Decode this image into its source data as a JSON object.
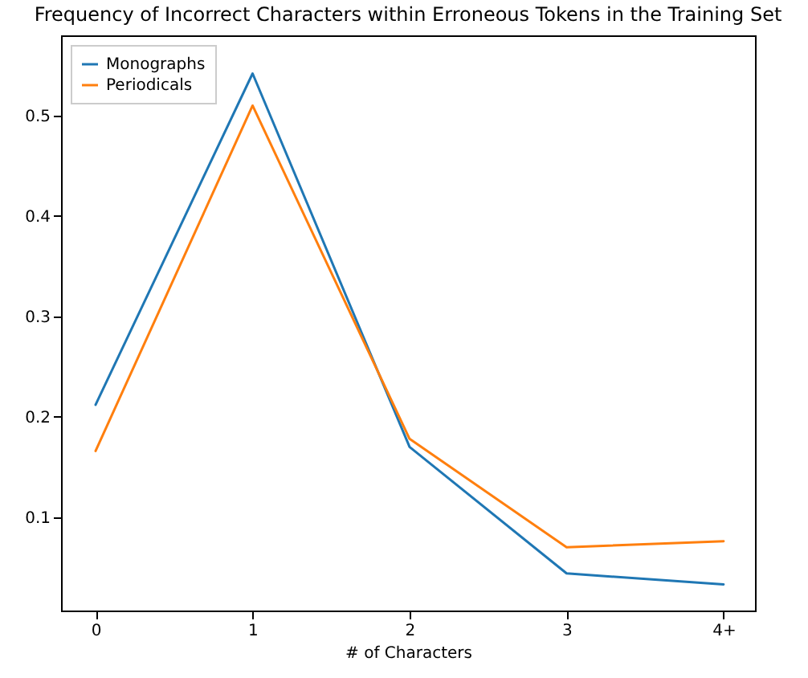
{
  "chart_data": {
    "type": "line",
    "title": "Frequency of Incorrect Characters within Erroneous Tokens in the Training Set",
    "xlabel": "# of Characters",
    "categories": [
      "0",
      "1",
      "2",
      "3",
      "4+"
    ],
    "series": [
      {
        "name": "Monographs",
        "color": "#1f77b4",
        "values": [
          0.212,
          0.542,
          0.17,
          0.044,
          0.033
        ]
      },
      {
        "name": "Periodicals",
        "color": "#ff7f0e",
        "values": [
          0.166,
          0.51,
          0.178,
          0.07,
          0.076
        ]
      }
    ],
    "ylim": [
      0.007,
      0.58
    ],
    "yticks": [
      0.1,
      0.2,
      0.3,
      0.4,
      0.5
    ],
    "grid": false,
    "legend": "top left"
  }
}
